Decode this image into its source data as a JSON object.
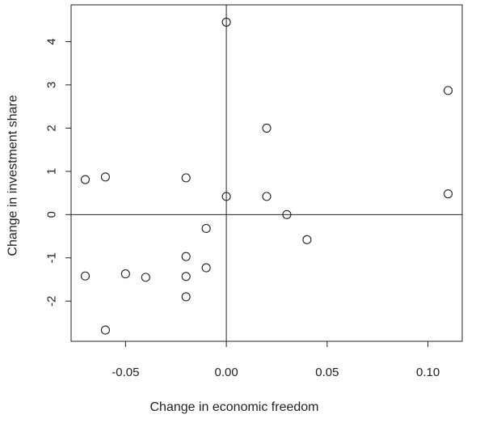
{
  "chart_data": {
    "type": "scatter",
    "title": "",
    "xlabel": "Change in economic freedom",
    "ylabel": "Change in investment share",
    "xlim": [
      -0.077,
      0.117
    ],
    "ylim": [
      -2.93,
      4.85
    ],
    "x_ticks": [
      -0.05,
      0.0,
      0.05,
      0.1
    ],
    "x_tick_labels": [
      "-0.05",
      "0.00",
      "0.05",
      "0.10"
    ],
    "y_ticks": [
      -2,
      -1,
      0,
      1,
      2,
      3,
      4
    ],
    "y_tick_labels": [
      "-2",
      "-1",
      "0",
      "1",
      "2",
      "3",
      "4"
    ],
    "reference_lines": {
      "x": 0,
      "y": 0
    },
    "grid": false,
    "marker": "open-circle",
    "colors": {
      "points": "#222222",
      "axes": "#222222",
      "reference": "#222222",
      "background": "#ffffff"
    },
    "points": [
      {
        "x": 0.0,
        "y": 4.45
      },
      {
        "x": 0.11,
        "y": 2.87
      },
      {
        "x": 0.02,
        "y": 2.0
      },
      {
        "x": -0.07,
        "y": 0.81
      },
      {
        "x": -0.06,
        "y": 0.87
      },
      {
        "x": -0.02,
        "y": 0.85
      },
      {
        "x": 0.0,
        "y": 0.42
      },
      {
        "x": 0.02,
        "y": 0.42
      },
      {
        "x": 0.11,
        "y": 0.48
      },
      {
        "x": 0.03,
        "y": 0.0
      },
      {
        "x": -0.01,
        "y": -0.32
      },
      {
        "x": 0.04,
        "y": -0.58
      },
      {
        "x": -0.02,
        "y": -0.97
      },
      {
        "x": -0.01,
        "y": -1.23
      },
      {
        "x": -0.05,
        "y": -1.37
      },
      {
        "x": -0.07,
        "y": -1.42
      },
      {
        "x": -0.04,
        "y": -1.45
      },
      {
        "x": -0.02,
        "y": -1.43
      },
      {
        "x": -0.02,
        "y": -1.9
      },
      {
        "x": -0.06,
        "y": -2.67
      }
    ]
  }
}
